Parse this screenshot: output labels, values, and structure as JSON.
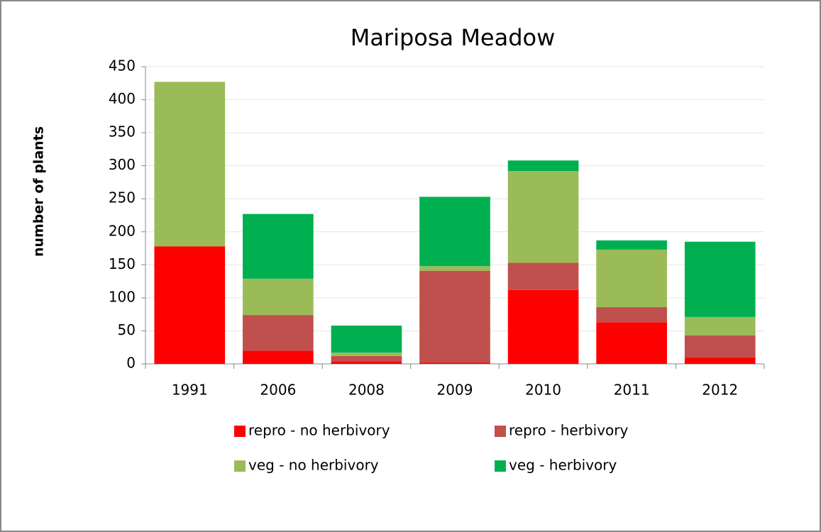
{
  "chart_data": {
    "type": "stacked_bar",
    "title": "Mariposa Meadow",
    "y_label": "number of plants",
    "categories": [
      "1991",
      "2006",
      "2008",
      "2009",
      "2010",
      "2011",
      "2012"
    ],
    "series": [
      {
        "name": "repro - no herbivory",
        "color": "#ff0000",
        "values": [
          178,
          20,
          4,
          2,
          112,
          63,
          10
        ]
      },
      {
        "name": "repro - herbivory",
        "color": "#c0504d",
        "values": [
          0,
          54,
          8,
          139,
          41,
          23,
          33
        ]
      },
      {
        "name": "veg - no herbivory",
        "color": "#9bbb59",
        "values": [
          249,
          55,
          5,
          7,
          139,
          87,
          28
        ]
      },
      {
        "name": "veg - herbivory",
        "color": "#00b050",
        "values": [
          0,
          98,
          41,
          105,
          16,
          14,
          114
        ]
      }
    ],
    "ylim": [
      0,
      450
    ],
    "yticks": [
      0,
      50,
      100,
      150,
      200,
      250,
      300,
      350,
      400,
      450
    ],
    "grid": true
  }
}
